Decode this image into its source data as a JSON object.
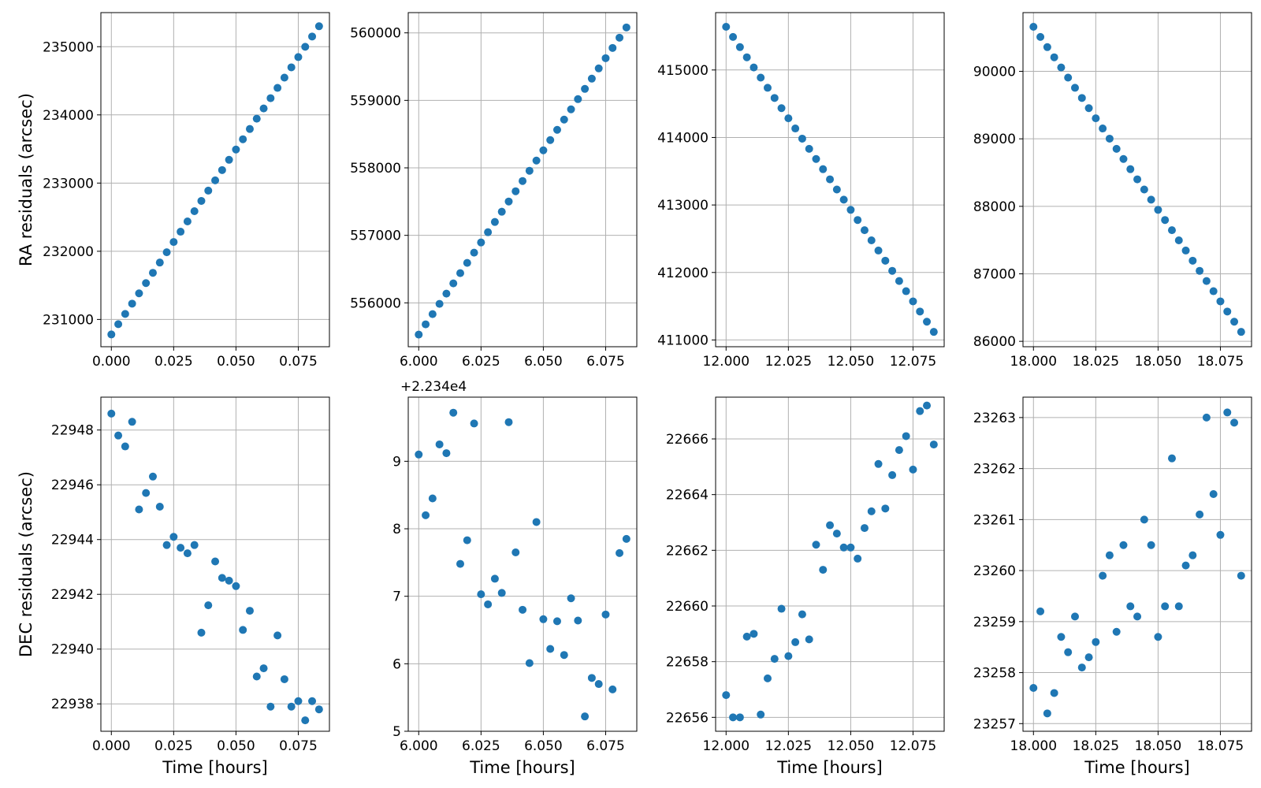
{
  "style": {
    "marker_color": "#1f77b4",
    "grid": true
  },
  "chart_data": [
    {
      "type": "scatter",
      "xlabel": "",
      "ylabel": "RA residuals (arcsec)",
      "xlim": [
        -0.0042,
        0.0875
      ],
      "ylim": [
        230600,
        235500
      ],
      "xticks": [
        0.0,
        0.025,
        0.05,
        0.075
      ],
      "xtick_labels": [
        "0.000",
        "0.025",
        "0.050",
        "0.075"
      ],
      "yticks": [
        231000,
        232000,
        233000,
        234000,
        235000
      ],
      "ytick_labels": [
        "231000",
        "232000",
        "233000",
        "234000",
        "235000"
      ],
      "series": [
        {
          "y_start": 230780,
          "y_end": 235300
        }
      ]
    },
    {
      "type": "scatter",
      "xlabel": "",
      "ylabel": "",
      "xlim": [
        5.9958,
        6.0875
      ],
      "ylim": [
        555350,
        560300
      ],
      "xticks": [
        6.0,
        6.025,
        6.05,
        6.075
      ],
      "xtick_labels": [
        "6.000",
        "6.025",
        "6.050",
        "6.075"
      ],
      "yticks": [
        556000,
        557000,
        558000,
        559000,
        560000
      ],
      "ytick_labels": [
        "556000",
        "557000",
        "558000",
        "559000",
        "560000"
      ],
      "series": [
        {
          "y_start": 555530,
          "y_end": 560080
        }
      ]
    },
    {
      "type": "scatter",
      "xlabel": "",
      "ylabel": "",
      "xlim": [
        11.9958,
        12.0875
      ],
      "ylim": [
        410900,
        415850
      ],
      "xticks": [
        12.0,
        12.025,
        12.05,
        12.075
      ],
      "xtick_labels": [
        "12.000",
        "12.025",
        "12.050",
        "12.075"
      ],
      "yticks": [
        411000,
        412000,
        413000,
        414000,
        415000
      ],
      "ytick_labels": [
        "411000",
        "412000",
        "413000",
        "414000",
        "415000"
      ],
      "series": [
        {
          "y_start": 415640,
          "y_end": 411120
        }
      ]
    },
    {
      "type": "scatter",
      "xlabel": "",
      "ylabel": "",
      "xlim": [
        17.9958,
        18.0875
      ],
      "ylim": [
        85920,
        90870
      ],
      "xticks": [
        18.0,
        18.025,
        18.05,
        18.075
      ],
      "xtick_labels": [
        "18.000",
        "18.025",
        "18.050",
        "18.075"
      ],
      "yticks": [
        86000,
        87000,
        88000,
        89000,
        90000
      ],
      "ytick_labels": [
        "86000",
        "87000",
        "88000",
        "89000",
        "90000"
      ],
      "series": [
        {
          "y_start": 90660,
          "y_end": 86140
        }
      ]
    },
    {
      "type": "scatter",
      "xlabel": "Time [hours]",
      "ylabel": "DEC residuals (arcsec)",
      "xlim": [
        -0.0042,
        0.0875
      ],
      "ylim": [
        22937.0,
        22949.2
      ],
      "xticks": [
        0.0,
        0.025,
        0.05,
        0.075
      ],
      "xtick_labels": [
        "0.000",
        "0.025",
        "0.050",
        "0.075"
      ],
      "yticks": [
        22938,
        22940,
        22942,
        22944,
        22946,
        22948
      ],
      "ytick_labels": [
        "22938",
        "22940",
        "22942",
        "22944",
        "22946",
        "22948"
      ],
      "series": [
        {
          "y": [
            22948.6,
            22947.8,
            22947.4,
            22948.3,
            22945.1,
            22945.7,
            22946.3,
            22945.2,
            22943.8,
            22944.1,
            22943.7,
            22943.5,
            22943.8,
            22940.6,
            22941.6,
            22943.2,
            22942.6,
            22942.5,
            22942.3,
            22940.7,
            22941.4,
            22939.0,
            22939.3,
            22937.9,
            22940.5,
            22938.9,
            22937.9,
            22938.1,
            22937.4,
            22938.1,
            22937.8
          ]
        }
      ]
    },
    {
      "type": "scatter",
      "xlabel": "Time [hours]",
      "ylabel": "",
      "offset_text": "+2.234e4",
      "xlim": [
        5.9958,
        6.0875
      ],
      "ylim": [
        5.0,
        9.95
      ],
      "xticks": [
        6.0,
        6.025,
        6.05,
        6.075
      ],
      "xtick_labels": [
        "6.000",
        "6.025",
        "6.050",
        "6.075"
      ],
      "yticks": [
        5,
        6,
        7,
        8,
        9
      ],
      "ytick_labels": [
        "5",
        "6",
        "7",
        "8",
        "9"
      ],
      "series": [
        {
          "y": [
            9.1,
            8.2,
            8.45,
            9.25,
            9.12,
            9.72,
            7.48,
            7.83,
            9.56,
            7.03,
            6.88,
            7.26,
            7.05,
            9.58,
            7.65,
            6.8,
            6.01,
            8.1,
            6.66,
            6.22,
            6.63,
            6.13,
            6.97,
            6.64,
            5.22,
            5.79,
            5.7,
            6.73,
            5.62,
            7.64,
            7.85
          ]
        }
      ]
    },
    {
      "type": "scatter",
      "xlabel": "Time [hours]",
      "ylabel": "",
      "xlim": [
        11.9958,
        12.0875
      ],
      "ylim": [
        22655.5,
        22667.5
      ],
      "xticks": [
        12.0,
        12.025,
        12.05,
        12.075
      ],
      "xtick_labels": [
        "12.000",
        "12.025",
        "12.050",
        "12.075"
      ],
      "yticks": [
        22656,
        22658,
        22660,
        22662,
        22664,
        22666
      ],
      "ytick_labels": [
        "22656",
        "22658",
        "22660",
        "22662",
        "22664",
        "22666"
      ],
      "series": [
        {
          "y": [
            22656.8,
            22656.0,
            22656.0,
            22658.9,
            22659.0,
            22656.1,
            22657.4,
            22658.1,
            22659.9,
            22658.2,
            22658.7,
            22659.7,
            22658.8,
            22662.2,
            22661.3,
            22662.9,
            22662.6,
            22662.1,
            22662.1,
            22661.7,
            22662.8,
            22663.4,
            22665.1,
            22663.5,
            22664.7,
            22665.6,
            22666.1,
            22664.9,
            22667.0,
            22667.2,
            22665.8
          ]
        }
      ]
    },
    {
      "type": "scatter",
      "xlabel": "Time [hours]",
      "ylabel": "",
      "xlim": [
        17.9958,
        18.0875
      ],
      "ylim": [
        23256.85,
        23263.4
      ],
      "xticks": [
        18.0,
        18.025,
        18.05,
        18.075
      ],
      "xtick_labels": [
        "18.000",
        "18.025",
        "18.050",
        "18.075"
      ],
      "yticks": [
        23257,
        23258,
        23259,
        23260,
        23261,
        23262,
        23263
      ],
      "ytick_labels": [
        "23257",
        "23258",
        "23259",
        "23260",
        "23261",
        "23262",
        "23263"
      ],
      "series": [
        {
          "y": [
            23257.7,
            23259.2,
            23257.2,
            23257.6,
            23258.7,
            23258.4,
            23259.1,
            23258.1,
            23258.3,
            23258.6,
            23259.9,
            23260.3,
            23258.8,
            23260.5,
            23259.3,
            23259.1,
            23261.0,
            23260.5,
            23258.7,
            23259.3,
            23262.2,
            23259.3,
            23260.1,
            23260.3,
            23261.1,
            23263.0,
            23261.5,
            23260.7,
            23263.1,
            23262.9,
            23259.9
          ]
        }
      ]
    }
  ]
}
